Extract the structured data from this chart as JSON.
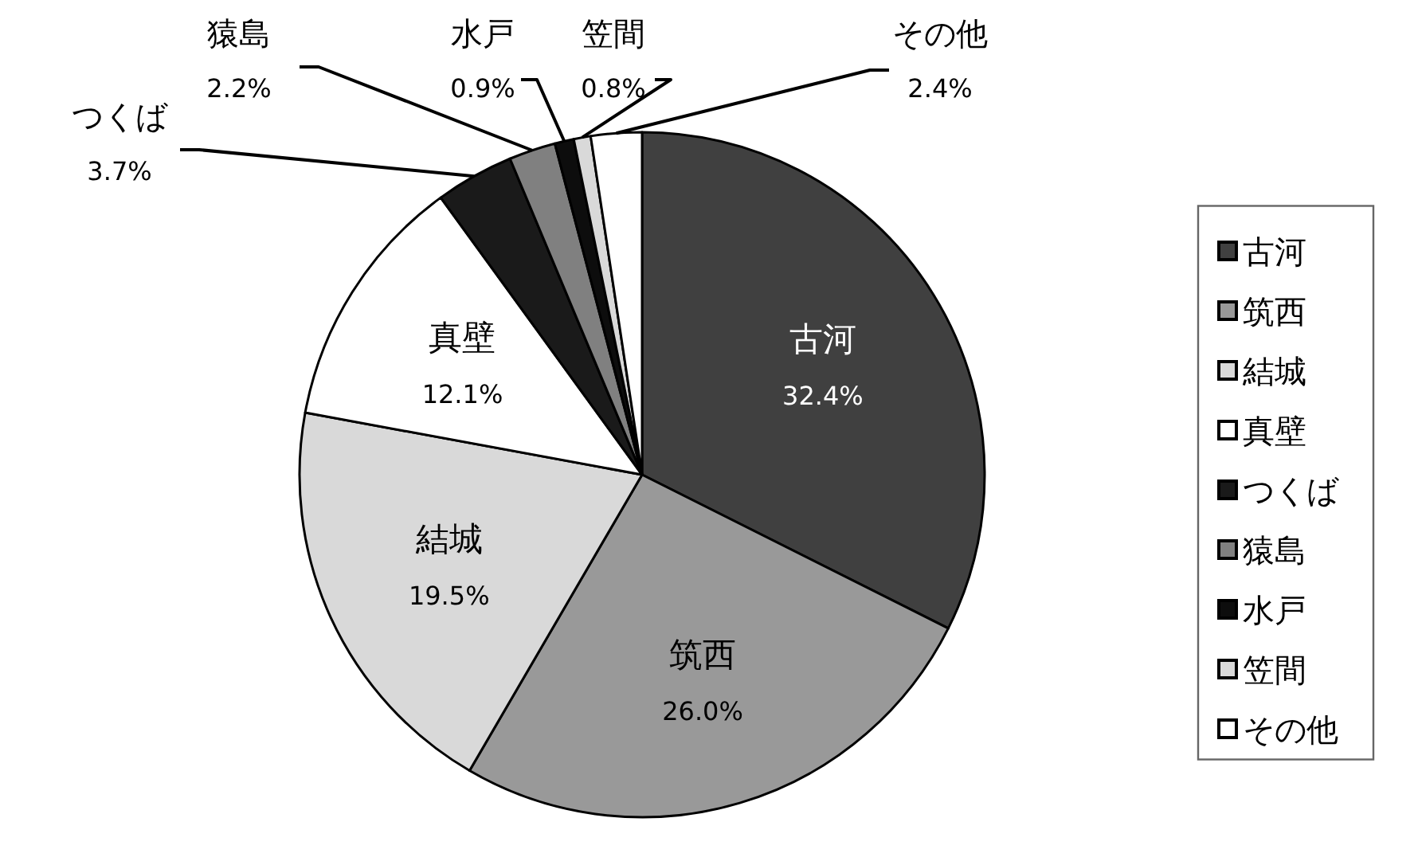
{
  "chart_data": {
    "type": "pie",
    "categories": [
      "古河",
      "筑西",
      "結城",
      "真壁",
      "つくば",
      "猿島",
      "水戸",
      "笠間",
      "その他"
    ],
    "values": [
      32.4,
      26.0,
      19.5,
      12.1,
      3.7,
      2.2,
      0.9,
      0.8,
      2.4
    ],
    "colors": [
      "#404040",
      "#999999",
      "#d9d9d9",
      "#ffffff",
      "#1a1a1a",
      "#808080",
      "#0d0d0d",
      "#d9d9d9",
      "#ffffff"
    ],
    "value_labels": [
      "32.4%",
      "26.0%",
      "19.5%",
      "12.1%",
      "3.7%",
      "2.2%",
      "0.9%",
      "0.8%",
      "2.4%"
    ],
    "legend": "right"
  }
}
